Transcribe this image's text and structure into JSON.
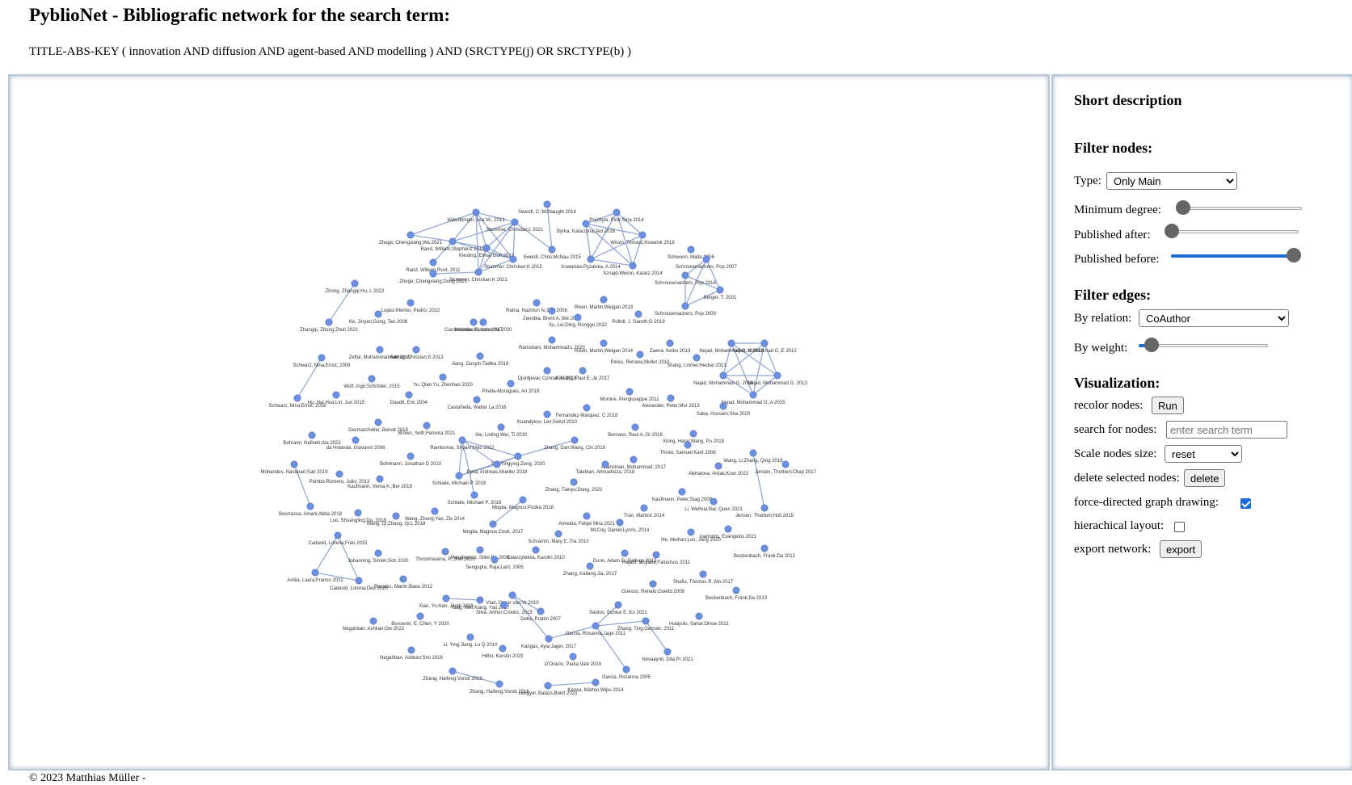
{
  "header": {
    "title": "PyblioNet - Bibliografic network for the search term:",
    "query": "TITLE-ABS-KEY ( innovation AND diffusion AND agent-based AND modelling ) AND (SRCTYPE(j) OR SRCTYPE(b) )"
  },
  "sidebar": {
    "short_description": "Short description",
    "filter_nodes_heading": "Filter nodes:",
    "type_label": "Type:",
    "type_value": "Only Main",
    "min_degree_label": "Minimum degree:",
    "min_degree_level": 0,
    "published_after_label": "Published after:",
    "published_after_level": 0,
    "published_before_label": "Published before:",
    "published_before_level": 1,
    "filter_edges_heading": "Filter edges:",
    "by_relation_label": "By relation:",
    "by_relation_value": "CoAuthor",
    "by_weight_label": "By weight:",
    "by_weight_level": 0.05,
    "visualization_heading": "Visualization:",
    "recolor_label": "recolor nodes:",
    "recolor_button": "Run",
    "search_label": "search for nodes:",
    "search_placeholder": "enter search term",
    "scale_label": "Scale nodes size:",
    "scale_value": "reset",
    "delete_label": "delete selected nodes:",
    "delete_button": "delete",
    "force_label": "force-directed graph drawing:",
    "force_checked": true,
    "hier_label": "hierachical layout:",
    "hier_checked": false,
    "export_label": "export network:",
    "export_button": "export"
  },
  "footer": {
    "text": "© 2023 Matthias Müller -"
  },
  "colors": {
    "node": "#6c8fe0",
    "edge": "#93a9d6",
    "accent": "#1a6bd6"
  },
  "graph": {
    "nodes": [
      {
        "id": "n1",
        "label": "Swerdl, C.;McNaught 2014"
      },
      {
        "id": "n2",
        "label": "Wakolbinger, Lea M.; 2013"
      },
      {
        "id": "n3",
        "label": "Stummer, Christian;L 2021"
      },
      {
        "id": "n4",
        "label": "Zhuge, Chengxiang;Wa 2021"
      },
      {
        "id": "n5",
        "label": "Rand, William;Stephens 2015"
      },
      {
        "id": "n6",
        "label": "Kiesling, Elmar;Gun 2012"
      },
      {
        "id": "n7",
        "label": "Rand, William;Rust, 2011"
      },
      {
        "id": "n8",
        "label": "Zhuge, Chengxiang;Dong 2021"
      },
      {
        "id": "n9",
        "label": "Stummer, Christian;K 2021"
      },
      {
        "id": "n10",
        "label": "Stummer, Christian;K 2015"
      },
      {
        "id": "n11",
        "label": "Swerdl, Chris;McNau 2015"
      },
      {
        "id": "n12",
        "label": "Pryzbyla, Piotr;Sina 2014"
      },
      {
        "id": "n13",
        "label": "Byrka, Katarzyna;Jed 2016"
      },
      {
        "id": "n14",
        "label": "Wosin, Tomasz;Kowalsk 2018"
      },
      {
        "id": "n15",
        "label": "Kowalska-Pyzalska, A 2014"
      },
      {
        "id": "n16",
        "label": "Sznajd-Weron, Katarz 2014"
      },
      {
        "id": "n17",
        "label": "Schwoon, Malte 2006"
      },
      {
        "id": "n18",
        "label": "Schrouvenachers, Pop 2007"
      },
      {
        "id": "n19",
        "label": "Schrouvenachers, Pop 2016"
      },
      {
        "id": "n20",
        "label": "Berger, T. 2001"
      },
      {
        "id": "n21",
        "label": "Schrouvenachers, Pop 2009"
      },
      {
        "id": "n22",
        "label": "Zhong, Zhangqi;Hu, L 2022"
      },
      {
        "id": "n23",
        "label": "Lopez-Merino, Pedro; 2022"
      },
      {
        "id": "n24",
        "label": "Ke, Jinyan;Gong, Tao 2008"
      },
      {
        "id": "n25",
        "label": "Zhangqi, Zhong;Zhuli 2022"
      },
      {
        "id": "n26",
        "label": "Carnavacciuolo, Lore 2017"
      },
      {
        "id": "n27",
        "label": "Ratna, Nazmun N.;Dra 2008"
      },
      {
        "id": "n28",
        "label": "Zenobia, Brent A.;We 2012"
      },
      {
        "id": "n29",
        "label": "Nöldeke, Beatrice;Wi 2020"
      },
      {
        "id": "n30",
        "label": "Xu, Lei;Ding, Ronggu 2022"
      },
      {
        "id": "n31",
        "label": "Rixen, Martin;Weigan 2013"
      },
      {
        "id": "n32",
        "label": "Polhill, J. Gareth;G 2019"
      },
      {
        "id": "n33",
        "label": "Rixen, Martin;Weigan 2014"
      },
      {
        "id": "n34",
        "label": "Ramshani, Mohammad;L 2020"
      },
      {
        "id": "n35",
        "label": "Zelfal, Muhammad Ade 2019"
      },
      {
        "id": "n36",
        "label": "Hartnig, Christian;S 2013"
      },
      {
        "id": "n37",
        "label": "Schwarz, Nina;Ernst, 2009"
      },
      {
        "id": "n38",
        "label": "Jiang, Guoyin;Tadika 2016"
      },
      {
        "id": "n39",
        "label": "Zaena, Keiko 2013"
      },
      {
        "id": "n40",
        "label": "Peres, Renana;Muller 2010"
      },
      {
        "id": "n41",
        "label": "Shang, Linmei;Heckel 2021"
      },
      {
        "id": "n42",
        "label": "Nejad, Mohammad G.;K 2012"
      },
      {
        "id": "n43",
        "label": "Nejad, Mohammad G.;E 2012"
      },
      {
        "id": "n44",
        "label": "Nejad, Mohammad G. 2016"
      },
      {
        "id": "n45",
        "label": "Nejad, Mohammad G. 2013"
      },
      {
        "id": "n46",
        "label": "Nejad, Mohammad G.;A 2015"
      },
      {
        "id": "n47",
        "label": "Wolf, Ingo;Schröder, 2015"
      },
      {
        "id": "n48",
        "label": "Yu, Qian;Yu, Zhenhao 2020"
      },
      {
        "id": "n49",
        "label": "Djurdjevac Conrad, N 2018"
      },
      {
        "id": "n50",
        "label": "Kiesling, Paul E.;Je 2017"
      },
      {
        "id": "n51",
        "label": "Pirella-Moragues, An 2019"
      },
      {
        "id": "n52",
        "label": "Schwarz, Nina;Ernst, 2016"
      },
      {
        "id": "n53",
        "label": "Hu, Hai Hua;Lin, Jun 2015"
      },
      {
        "id": "n54",
        "label": "Daudlt, Eric 2004"
      },
      {
        "id": "n55",
        "label": "Castañeda, Walter La 2016"
      },
      {
        "id": "n56",
        "label": "Morone, Piergiuseppe 2011"
      },
      {
        "id": "n57",
        "label": "Alexander, Peter;Mor 2013"
      },
      {
        "id": "n58",
        "label": "Saba, Hossein;Sha 2020"
      },
      {
        "id": "n59",
        "label": "Fernández-Márquez, C 2018"
      },
      {
        "id": "n60",
        "label": "Kuandykov, Lev;Sokol 2010"
      },
      {
        "id": "n61",
        "label": "Desmarchelier, Benoit 2018"
      },
      {
        "id": "n62",
        "label": "Brown, Seth;Ferreira 2021"
      },
      {
        "id": "n63",
        "label": "Xie, Linling;Wei, Ti 2020"
      },
      {
        "id": "n64",
        "label": "Bornaco, Raul A.;Gi 2018"
      },
      {
        "id": "n65",
        "label": "Bahrami, Nafiseh;Ala 2022"
      },
      {
        "id": "n66",
        "label": "da Holanda, Giovanni 2008"
      },
      {
        "id": "n67",
        "label": "Ramkumar, Shyam;Mao 2022"
      },
      {
        "id": "n68",
        "label": "Zhang, Dan;Wang, Chi 2018"
      },
      {
        "id": "n69",
        "label": "Xiong, Hang;Wang, Pu 2018"
      },
      {
        "id": "n70",
        "label": "Thiriot, Samuel;Kant 2008"
      },
      {
        "id": "n71",
        "label": "Bohlmann, Jonathan D 2010"
      },
      {
        "id": "n72",
        "label": "Shi, Yingying;Zeng, 2020"
      },
      {
        "id": "n73",
        "label": "Ahanchian, Mohammad; 2017"
      },
      {
        "id": "n74",
        "label": "Wang, Li;Zhang, Qing 2018"
      },
      {
        "id": "n75",
        "label": "Jensen, Thorben;Chap 2017"
      },
      {
        "id": "n76",
        "label": "Mohandes, Nastaran;San 2019"
      },
      {
        "id": "n77",
        "label": "Pombo-Romero, Julio; 2013"
      },
      {
        "id": "n78",
        "label": "Kaufmann, Verna K.;Ber 2019"
      },
      {
        "id": "n79",
        "label": "Pyka, Andreas;Mueller 2018"
      },
      {
        "id": "n80",
        "label": "Schlaile, Michael P. 2018"
      },
      {
        "id": "n81",
        "label": "Talebian, Ahmadreza; 2018"
      },
      {
        "id": "n82",
        "label": "Alkhatova, Ardak;Kran 2022"
      },
      {
        "id": "n83",
        "label": "Zhang, Tianyu;Dong, 2022"
      },
      {
        "id": "n84",
        "label": "Kaufmann, Peter;Stag 2009"
      },
      {
        "id": "n85",
        "label": "Li, Weihua;Bai, Quan 2021"
      },
      {
        "id": "n86",
        "label": "Schlaile, Michael P. 2018"
      },
      {
        "id": "n87",
        "label": "Moglia, Magnus;Podka 2018"
      },
      {
        "id": "n88",
        "label": "Bourrassa, Amani;Abba 2018"
      },
      {
        "id": "n89",
        "label": "Luo, Shuangling;Du, 2018"
      },
      {
        "id": "n90",
        "label": "Wang, Zhong;Yao, Zix 2014"
      },
      {
        "id": "n91",
        "label": "Wang, Qi;Zhang, Qi;L 2018"
      },
      {
        "id": "n92",
        "label": "Tran, Martino 2014"
      },
      {
        "id": "n93",
        "label": "Jensen, Thorben;Holl 2015"
      },
      {
        "id": "n94",
        "label": "Almeida, Felipe Mira 2021"
      },
      {
        "id": "n95",
        "label": "McCoy, Daniel;Lyons, 2014"
      },
      {
        "id": "n96",
        "label": "Moglia, Magnus;Cook, 2017"
      },
      {
        "id": "n97",
        "label": "Schramm, Mary E.;Tra 2010"
      },
      {
        "id": "n98",
        "label": "Ioannidis, Evangelos 2021"
      },
      {
        "id": "n99",
        "label": "He, Meihan;Luo, Jong 2020"
      },
      {
        "id": "n100",
        "label": "Cadavid, Lorena;Fran 2015"
      },
      {
        "id": "n101",
        "label": "Thoonhasena, P.;Shei 2020"
      },
      {
        "id": "n102",
        "label": "Johanning, Simon;Sch 2020"
      },
      {
        "id": "n103",
        "label": "Panebianco, Silke;Pa 2006"
      },
      {
        "id": "n104",
        "label": "Salarzytekka, Karolin 2010"
      },
      {
        "id": "n105",
        "label": "Dunn, Adam G.;Gallego 2013"
      },
      {
        "id": "n106",
        "label": "Rajabi, Mojtaba;Faloutsos 2011"
      },
      {
        "id": "n107",
        "label": "Bockenbach, Frank;Da 2012"
      },
      {
        "id": "n108",
        "label": "Sengupta, Raja;Lant, 2005"
      },
      {
        "id": "n109",
        "label": "Zhang, Kailang;Jia, 2017"
      },
      {
        "id": "n110",
        "label": "Shafiu, Thomas R.;Mo 2017"
      },
      {
        "id": "n111",
        "label": "Ardila, Laura;Franco 2022"
      },
      {
        "id": "n112",
        "label": "Cadavid, Lorena;Deu 2020"
      },
      {
        "id": "n113",
        "label": "Rosales, Martin;Baeu 2012"
      },
      {
        "id": "n114",
        "label": "Guesso, Renato;Gueltd 2009"
      },
      {
        "id": "n115",
        "label": "Bockenbach, Frank;Da 2013"
      },
      {
        "id": "n116",
        "label": "Xiao, Yu;Han, Jingti 2018"
      },
      {
        "id": "n117",
        "label": "Yang, Wei;Xiang, Yao 2017"
      },
      {
        "id": "n118",
        "label": "Vlad, Oscar van;Vr 2010"
      },
      {
        "id": "n119",
        "label": "Silva, Arthur;Crooks, 2015"
      },
      {
        "id": "n120",
        "label": "Santos, Eunice E.;Ko 2021"
      },
      {
        "id": "n121",
        "label": "Borowski, E.;Chen, Y 2020"
      },
      {
        "id": "n122",
        "label": "Delta, Pratim 2007"
      },
      {
        "id": "n123",
        "label": "Zhang, Ting;Gensler, 2011"
      },
      {
        "id": "n124",
        "label": "Hulajsilu, Sahar;Dhow 2021"
      },
      {
        "id": "n125",
        "label": "Negahban, Ashkan;Ow 2022"
      },
      {
        "id": "n126",
        "label": "Garcia, Rosanna;Jage 2011"
      },
      {
        "id": "n127",
        "label": "Li, Ying;Jiang, Lu Q 2010"
      },
      {
        "id": "n128",
        "label": "Kangas, Ayla;Jager, 2017"
      },
      {
        "id": "n129",
        "label": "Hittio, Kerstin 2020"
      },
      {
        "id": "n130",
        "label": "Negahban, Ashkan;Smi 2018"
      },
      {
        "id": "n131",
        "label": "Novaaynti, Dita;Pr 2021"
      },
      {
        "id": "n132",
        "label": "D'Orazio, Paola;Vale 2019"
      },
      {
        "id": "n133",
        "label": "Garcia, Rosanna 2005"
      },
      {
        "id": "n134",
        "label": "Zhang, Haifeng;Vorob 2019"
      },
      {
        "id": "n135",
        "label": "Zhang, Haifeng;Vorob 2016"
      },
      {
        "id": "n136",
        "label": "Lengyel, Balázs;Bokő 2020"
      },
      {
        "id": "n137",
        "label": "Kansa, Márton;Wipu 2014"
      }
    ],
    "edges": [
      [
        "n2",
        "n3"
      ],
      [
        "n2",
        "n4"
      ],
      [
        "n2",
        "n5"
      ],
      [
        "n2",
        "n6"
      ],
      [
        "n2",
        "n9"
      ],
      [
        "n2",
        "n10"
      ],
      [
        "n3",
        "n5"
      ],
      [
        "n3",
        "n6"
      ],
      [
        "n3",
        "n10"
      ],
      [
        "n4",
        "n5"
      ],
      [
        "n5",
        "n6"
      ],
      [
        "n5",
        "n10"
      ],
      [
        "n6",
        "n9"
      ],
      [
        "n6",
        "n10"
      ],
      [
        "n8",
        "n9"
      ],
      [
        "n9",
        "n10"
      ],
      [
        "n3",
        "n9"
      ],
      [
        "n3",
        "n11"
      ],
      [
        "n5",
        "n7"
      ],
      [
        "n1",
        "n11"
      ],
      [
        "n12",
        "n13"
      ],
      [
        "n12",
        "n14"
      ],
      [
        "n12",
        "n15"
      ],
      [
        "n13",
        "n14"
      ],
      [
        "n13",
        "n15"
      ],
      [
        "n13",
        "n16"
      ],
      [
        "n14",
        "n15"
      ],
      [
        "n14",
        "n16"
      ],
      [
        "n15",
        "n16"
      ],
      [
        "n12",
        "n16"
      ],
      [
        "n18",
        "n19"
      ],
      [
        "n18",
        "n20"
      ],
      [
        "n18",
        "n21"
      ],
      [
        "n19",
        "n20"
      ],
      [
        "n19",
        "n21"
      ],
      [
        "n20",
        "n21"
      ],
      [
        "n42",
        "n43"
      ],
      [
        "n42",
        "n44"
      ],
      [
        "n42",
        "n45"
      ],
      [
        "n42",
        "n46"
      ],
      [
        "n43",
        "n44"
      ],
      [
        "n43",
        "n45"
      ],
      [
        "n43",
        "n46"
      ],
      [
        "n44",
        "n45"
      ],
      [
        "n44",
        "n46"
      ],
      [
        "n45",
        "n46"
      ],
      [
        "n37",
        "n52"
      ],
      [
        "n67",
        "n72"
      ],
      [
        "n67",
        "n79"
      ],
      [
        "n67",
        "n80"
      ],
      [
        "n67",
        "n86"
      ],
      [
        "n72",
        "n79"
      ],
      [
        "n79",
        "n80"
      ],
      [
        "n72",
        "n80"
      ],
      [
        "n76",
        "n88"
      ],
      [
        "n74",
        "n93"
      ],
      [
        "n100",
        "n111"
      ],
      [
        "n100",
        "n112"
      ],
      [
        "n111",
        "n112"
      ],
      [
        "n96",
        "n87"
      ],
      [
        "n118",
        "n122"
      ],
      [
        "n118",
        "n128"
      ],
      [
        "n126",
        "n128"
      ],
      [
        "n126",
        "n120"
      ],
      [
        "n126",
        "n123"
      ],
      [
        "n123",
        "n131"
      ],
      [
        "n126",
        "n133"
      ],
      [
        "n134",
        "n135"
      ],
      [
        "n136",
        "n137"
      ],
      [
        "n68",
        "n72"
      ],
      [
        "n116",
        "n117"
      ],
      [
        "n22",
        "n25"
      ]
    ]
  }
}
